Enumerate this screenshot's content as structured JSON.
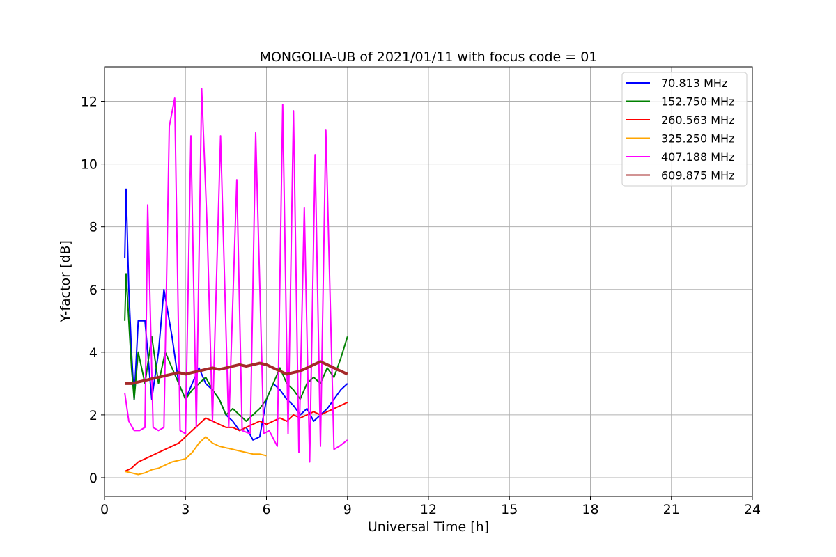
{
  "chart_data": {
    "type": "line",
    "title": "MONGOLIA-UB of 2021/01/11 with focus code = 01",
    "xlabel": "Universal Time [h]",
    "ylabel": "Y-factor [dB]",
    "xlim": [
      0,
      24
    ],
    "ylim": [
      -0.6,
      13.1
    ],
    "xticks": [
      0,
      3,
      6,
      9,
      12,
      15,
      18,
      21,
      24
    ],
    "yticks": [
      0,
      2,
      4,
      6,
      8,
      10,
      12
    ],
    "xtick_labels": [
      "0",
      "3",
      "6",
      "9",
      "12",
      "15",
      "18",
      "21",
      "24"
    ],
    "ytick_labels": [
      "0",
      "2",
      "4",
      "6",
      "8",
      "10",
      "12"
    ],
    "grid": true,
    "legend_position": "top-right",
    "data_x_range": [
      0.75,
      9.0
    ],
    "series": [
      {
        "name": " 70.813 MHz",
        "color": "#0000ff",
        "x": [
          0.75,
          0.8,
          0.9,
          1.0,
          1.1,
          1.25,
          1.5,
          1.75,
          2.0,
          2.2,
          2.5,
          2.75,
          3.0,
          3.25,
          3.5,
          3.75,
          4.0,
          4.25,
          4.5,
          4.75,
          5.0,
          5.25,
          5.5,
          5.75,
          6.0,
          6.25,
          6.5,
          6.75,
          7.0,
          7.25,
          7.5,
          7.75,
          8.0,
          8.25,
          8.5,
          8.75,
          9.0
        ],
        "y": [
          7.0,
          9.2,
          6.0,
          4.0,
          2.5,
          5.0,
          5.0,
          2.5,
          4.0,
          6.0,
          4.5,
          3.0,
          2.5,
          3.0,
          3.5,
          3.0,
          2.8,
          2.5,
          2.0,
          1.8,
          1.5,
          1.6,
          1.2,
          1.3,
          2.5,
          3.0,
          2.8,
          2.5,
          2.3,
          2.0,
          2.2,
          1.8,
          2.0,
          2.2,
          2.5,
          2.8,
          3.0
        ]
      },
      {
        "name": "152.750 MHz",
        "color": "#008000",
        "x": [
          0.75,
          0.8,
          0.9,
          1.0,
          1.1,
          1.25,
          1.5,
          1.75,
          2.0,
          2.25,
          2.5,
          2.75,
          3.0,
          3.25,
          3.5,
          3.75,
          4.0,
          4.25,
          4.5,
          4.75,
          5.0,
          5.25,
          5.5,
          5.75,
          6.0,
          6.25,
          6.5,
          6.75,
          7.0,
          7.25,
          7.5,
          7.75,
          8.0,
          8.25,
          8.5,
          8.75,
          9.0
        ],
        "y": [
          5.0,
          6.5,
          5.0,
          3.5,
          2.5,
          4.0,
          3.0,
          4.5,
          3.0,
          4.0,
          3.5,
          3.0,
          2.5,
          2.8,
          3.0,
          3.2,
          2.8,
          2.5,
          2.0,
          2.2,
          2.0,
          1.8,
          2.0,
          2.2,
          2.5,
          3.0,
          3.5,
          3.0,
          2.8,
          2.5,
          3.0,
          3.2,
          3.0,
          3.5,
          3.2,
          3.8,
          4.5
        ]
      },
      {
        "name": "260.563 MHz",
        "color": "#ff0000",
        "x": [
          0.75,
          1.0,
          1.25,
          1.5,
          1.75,
          2.0,
          2.25,
          2.5,
          2.75,
          3.0,
          3.25,
          3.5,
          3.75,
          4.0,
          4.25,
          4.5,
          4.75,
          5.0,
          5.25,
          5.5,
          5.75,
          6.0,
          6.25,
          6.5,
          6.75,
          7.0,
          7.25,
          7.5,
          7.75,
          8.0,
          8.25,
          8.5,
          8.75,
          9.0
        ],
        "y": [
          0.2,
          0.3,
          0.5,
          0.6,
          0.7,
          0.8,
          0.9,
          1.0,
          1.1,
          1.3,
          1.5,
          1.7,
          1.9,
          1.8,
          1.7,
          1.6,
          1.6,
          1.5,
          1.6,
          1.7,
          1.8,
          1.7,
          1.8,
          1.9,
          1.8,
          2.0,
          1.9,
          2.0,
          2.1,
          2.0,
          2.1,
          2.2,
          2.3,
          2.4
        ]
      },
      {
        "name": "325.250 MHz",
        "color": "#ffa500",
        "x": [
          0.75,
          1.0,
          1.25,
          1.5,
          1.75,
          2.0,
          2.25,
          2.5,
          2.75,
          3.0,
          3.25,
          3.5,
          3.75,
          4.0,
          4.25,
          4.5,
          4.75,
          5.0,
          5.25,
          5.5,
          5.75,
          6.0
        ],
        "y": [
          0.2,
          0.15,
          0.1,
          0.15,
          0.25,
          0.3,
          0.4,
          0.5,
          0.55,
          0.6,
          0.8,
          1.1,
          1.3,
          1.1,
          1.0,
          0.95,
          0.9,
          0.85,
          0.8,
          0.75,
          0.75,
          0.7
        ]
      },
      {
        "name": "407.188 MHz",
        "color": "#ff00ff",
        "x": [
          0.75,
          0.9,
          1.1,
          1.3,
          1.5,
          1.6,
          1.8,
          2.0,
          2.2,
          2.4,
          2.6,
          2.8,
          3.0,
          3.2,
          3.4,
          3.6,
          3.8,
          4.0,
          4.3,
          4.6,
          4.9,
          5.1,
          5.4,
          5.6,
          5.9,
          6.1,
          6.4,
          6.6,
          6.8,
          7.0,
          7.2,
          7.4,
          7.6,
          7.8,
          8.0,
          8.2,
          8.5,
          8.7,
          9.0
        ],
        "y": [
          2.7,
          1.8,
          1.5,
          1.5,
          1.6,
          8.7,
          1.6,
          1.5,
          1.6,
          11.2,
          12.1,
          1.5,
          1.4,
          10.9,
          1.6,
          12.4,
          8.0,
          1.8,
          10.9,
          1.6,
          9.5,
          1.5,
          1.4,
          11.0,
          1.4,
          1.5,
          1.0,
          11.9,
          1.4,
          11.7,
          0.8,
          8.6,
          0.5,
          10.3,
          1.0,
          11.1,
          0.9,
          1.0,
          1.2
        ]
      },
      {
        "name": "609.875 MHz",
        "color": "#a52a2a",
        "x": [
          0.75,
          1.0,
          1.25,
          1.5,
          1.75,
          2.0,
          2.25,
          2.5,
          2.75,
          3.0,
          3.25,
          3.5,
          3.75,
          4.0,
          4.25,
          4.5,
          4.75,
          5.0,
          5.25,
          5.5,
          5.75,
          6.0,
          6.25,
          6.5,
          6.75,
          7.0,
          7.25,
          7.5,
          7.75,
          8.0,
          8.25,
          8.5,
          8.75,
          9.0
        ],
        "y": [
          3.0,
          3.0,
          3.05,
          3.1,
          3.15,
          3.2,
          3.25,
          3.3,
          3.35,
          3.3,
          3.35,
          3.4,
          3.45,
          3.5,
          3.45,
          3.5,
          3.55,
          3.6,
          3.55,
          3.6,
          3.65,
          3.6,
          3.5,
          3.4,
          3.3,
          3.35,
          3.4,
          3.5,
          3.6,
          3.7,
          3.6,
          3.5,
          3.4,
          3.3
        ]
      }
    ]
  }
}
